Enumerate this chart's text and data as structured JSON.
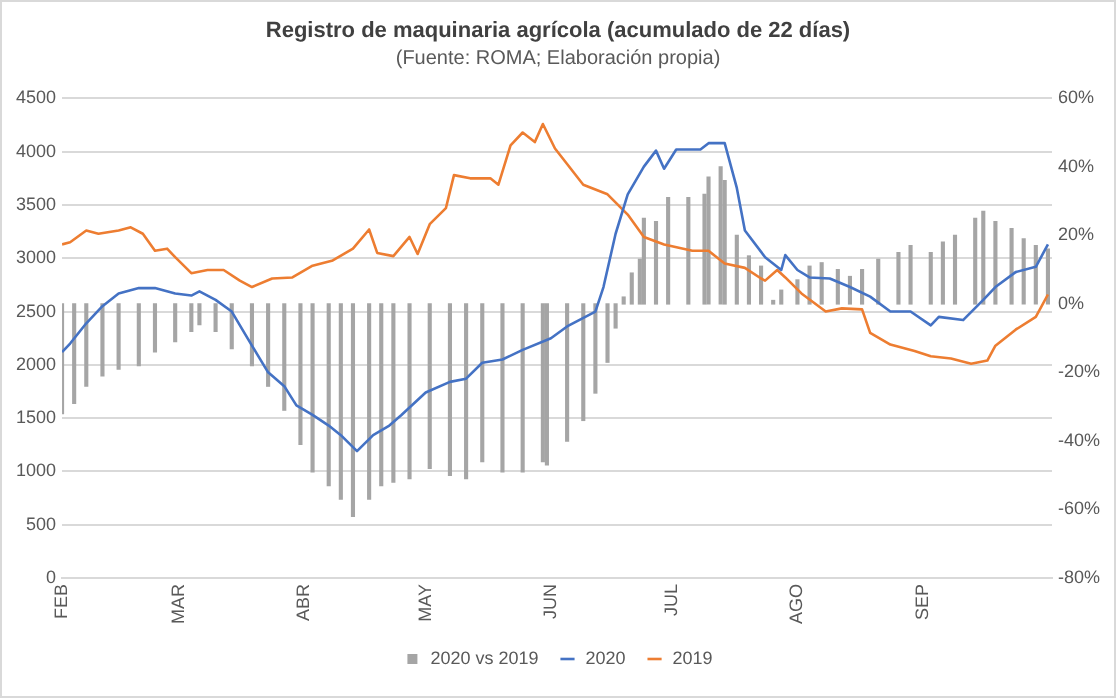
{
  "chart_data": {
    "type": "line",
    "title": "Registro de maquinaria agrícola (acumulado de 22 días)",
    "subtitle": "(Fuente: ROMA; Elaboración propia)",
    "xlim": [
      "2020-02-01",
      "2020-10-03"
    ],
    "xticks": [
      {
        "value": "2020-02-01",
        "label": "FEB"
      },
      {
        "value": "2020-03-01",
        "label": "MAR"
      },
      {
        "value": "2020-04-01",
        "label": "ABR"
      },
      {
        "value": "2020-05-01",
        "label": "MAY"
      },
      {
        "value": "2020-06-01",
        "label": "JUN"
      },
      {
        "value": "2020-07-01",
        "label": "JUL"
      },
      {
        "value": "2020-08-01",
        "label": "AGO"
      },
      {
        "value": "2020-09-01",
        "label": "SEP"
      }
    ],
    "ylim": [
      0,
      4500
    ],
    "yticks": [
      0,
      500,
      1000,
      1500,
      2000,
      2500,
      3000,
      3500,
      4000,
      4500
    ],
    "y2lim": [
      -80,
      60
    ],
    "y2ticks": [
      {
        "value": -80,
        "label": "-80%"
      },
      {
        "value": -60,
        "label": "-60%"
      },
      {
        "value": -40,
        "label": "-40%"
      },
      {
        "value": -20,
        "label": "-20%"
      },
      {
        "value": 0,
        "label": "0%"
      },
      {
        "value": 20,
        "label": "20%"
      },
      {
        "value": 40,
        "label": "40%"
      },
      {
        "value": 60,
        "label": "60%"
      }
    ],
    "grid": "y",
    "legend": "bottom",
    "marker": "none",
    "series": [
      {
        "name": "2020 vs 2019",
        "type": "bar",
        "axis": "y2",
        "color": "#a5a5a5",
        "x": [
          "2020-02-01",
          "2020-02-04",
          "2020-02-07",
          "2020-02-11",
          "2020-02-15",
          "2020-02-20",
          "2020-02-24",
          "2020-02-29",
          "2020-03-04",
          "2020-03-06",
          "2020-03-10",
          "2020-03-14",
          "2020-03-19",
          "2020-03-23",
          "2020-03-27",
          "2020-03-31",
          "2020-04-03",
          "2020-04-07",
          "2020-04-10",
          "2020-04-13",
          "2020-04-17",
          "2020-04-20",
          "2020-04-23",
          "2020-04-27",
          "2020-05-02",
          "2020-05-07",
          "2020-05-11",
          "2020-05-15",
          "2020-05-20",
          "2020-05-25",
          "2020-05-30",
          "2020-05-31",
          "2020-06-05",
          "2020-06-09",
          "2020-06-12",
          "2020-06-15",
          "2020-06-17",
          "2020-06-19",
          "2020-06-21",
          "2020-06-23",
          "2020-06-24",
          "2020-06-27",
          "2020-06-30",
          "2020-07-05",
          "2020-07-09",
          "2020-07-10",
          "2020-07-13",
          "2020-07-14",
          "2020-07-17",
          "2020-07-20",
          "2020-07-23",
          "2020-07-26",
          "2020-07-28",
          "2020-08-01",
          "2020-08-04",
          "2020-08-07",
          "2020-08-11",
          "2020-08-14",
          "2020-08-17",
          "2020-08-21",
          "2020-08-26",
          "2020-08-29",
          "2020-09-03",
          "2020-09-06",
          "2020-09-09",
          "2020-09-14",
          "2020-09-16",
          "2020-09-19",
          "2020-09-23",
          "2020-09-26",
          "2020-09-29",
          "2020-10-02"
        ],
        "values": [
          -32,
          -29,
          -24,
          -21,
          -19,
          -18,
          -14,
          -11,
          -8,
          -6,
          -8,
          -13,
          -18,
          -24,
          -31,
          -41,
          -49,
          -53,
          -57,
          -62,
          -57,
          -53,
          -52,
          -51,
          -48,
          -50,
          -51,
          -46,
          -49,
          -49,
          -46,
          -47,
          -40,
          -34,
          -26,
          -17,
          -7,
          2,
          9,
          13,
          25,
          24,
          31,
          31,
          32,
          37,
          40,
          36,
          20,
          14,
          11,
          1,
          4,
          7,
          11,
          12,
          10,
          8,
          10,
          13,
          15,
          17,
          15,
          18,
          20,
          25,
          27,
          24,
          22,
          19,
          17,
          16
        ]
      },
      {
        "name": "2020",
        "color": "#4472c4",
        "x": [
          "2020-02-01",
          "2020-02-03",
          "2020-02-07",
          "2020-02-11",
          "2020-02-15",
          "2020-02-20",
          "2020-02-24",
          "2020-02-29",
          "2020-03-04",
          "2020-03-06",
          "2020-03-10",
          "2020-03-14",
          "2020-03-19",
          "2020-03-23",
          "2020-03-27",
          "2020-03-30",
          "2020-04-03",
          "2020-04-07",
          "2020-04-10",
          "2020-04-14",
          "2020-04-18",
          "2020-04-22",
          "2020-04-25",
          "2020-05-01",
          "2020-05-07",
          "2020-05-11",
          "2020-05-15",
          "2020-05-20",
          "2020-05-25",
          "2020-06-01",
          "2020-06-05",
          "2020-06-12",
          "2020-06-14",
          "2020-06-17",
          "2020-06-20",
          "2020-06-24",
          "2020-06-27",
          "2020-06-29",
          "2020-07-02",
          "2020-07-08",
          "2020-07-10",
          "2020-07-14",
          "2020-07-17",
          "2020-07-19",
          "2020-07-24",
          "2020-07-28",
          "2020-07-29",
          "2020-08-01",
          "2020-08-04",
          "2020-08-09",
          "2020-08-14",
          "2020-08-19",
          "2020-08-24",
          "2020-08-29",
          "2020-09-03",
          "2020-09-05",
          "2020-09-11",
          "2020-09-16",
          "2020-09-19",
          "2020-09-24",
          "2020-09-29",
          "2020-10-02"
        ],
        "values": [
          2120,
          2200,
          2390,
          2550,
          2670,
          2720,
          2720,
          2670,
          2650,
          2690,
          2610,
          2500,
          2180,
          1930,
          1800,
          1620,
          1530,
          1430,
          1340,
          1190,
          1340,
          1430,
          1530,
          1740,
          1840,
          1870,
          2020,
          2050,
          2140,
          2250,
          2360,
          2500,
          2730,
          3230,
          3600,
          3860,
          4010,
          3840,
          4020,
          4020,
          4080,
          4080,
          3660,
          3260,
          3010,
          2890,
          3030,
          2890,
          2820,
          2810,
          2730,
          2640,
          2500,
          2500,
          2370,
          2450,
          2420,
          2610,
          2730,
          2870,
          2920,
          3130
        ]
      },
      {
        "name": "2019",
        "color": "#ed7d31",
        "x": [
          "2020-02-01",
          "2020-02-03",
          "2020-02-07",
          "2020-02-10",
          "2020-02-15",
          "2020-02-18",
          "2020-02-21",
          "2020-02-24",
          "2020-02-27",
          "2020-02-29",
          "2020-03-04",
          "2020-03-08",
          "2020-03-12",
          "2020-03-16",
          "2020-03-19",
          "2020-03-24",
          "2020-03-29",
          "2020-04-03",
          "2020-04-08",
          "2020-04-13",
          "2020-04-17",
          "2020-04-19",
          "2020-04-23",
          "2020-04-27",
          "2020-04-29",
          "2020-05-02",
          "2020-05-06",
          "2020-05-08",
          "2020-05-12",
          "2020-05-17",
          "2020-05-19",
          "2020-05-22",
          "2020-05-25",
          "2020-05-28",
          "2020-05-30",
          "2020-06-02",
          "2020-06-09",
          "2020-06-15",
          "2020-06-20",
          "2020-06-24",
          "2020-06-29",
          "2020-07-06",
          "2020-07-10",
          "2020-07-14",
          "2020-07-19",
          "2020-07-23",
          "2020-07-24",
          "2020-07-27",
          "2020-07-29",
          "2020-08-02",
          "2020-08-08",
          "2020-08-12",
          "2020-08-17",
          "2020-08-19",
          "2020-08-24",
          "2020-08-30",
          "2020-09-03",
          "2020-09-08",
          "2020-09-13",
          "2020-09-17",
          "2020-09-19",
          "2020-09-24",
          "2020-09-29",
          "2020-10-02"
        ],
        "values": [
          3130,
          3150,
          3260,
          3230,
          3260,
          3290,
          3230,
          3070,
          3090,
          3010,
          2860,
          2890,
          2890,
          2790,
          2730,
          2810,
          2820,
          2930,
          2980,
          3090,
          3270,
          3050,
          3020,
          3200,
          3040,
          3320,
          3470,
          3780,
          3750,
          3750,
          3690,
          4060,
          4180,
          4090,
          4260,
          4030,
          3690,
          3600,
          3410,
          3200,
          3130,
          3070,
          3070,
          2950,
          2910,
          2810,
          2790,
          2890,
          2820,
          2670,
          2500,
          2530,
          2520,
          2300,
          2190,
          2130,
          2080,
          2060,
          2010,
          2040,
          2180,
          2330,
          2450,
          2660
        ]
      }
    ]
  }
}
